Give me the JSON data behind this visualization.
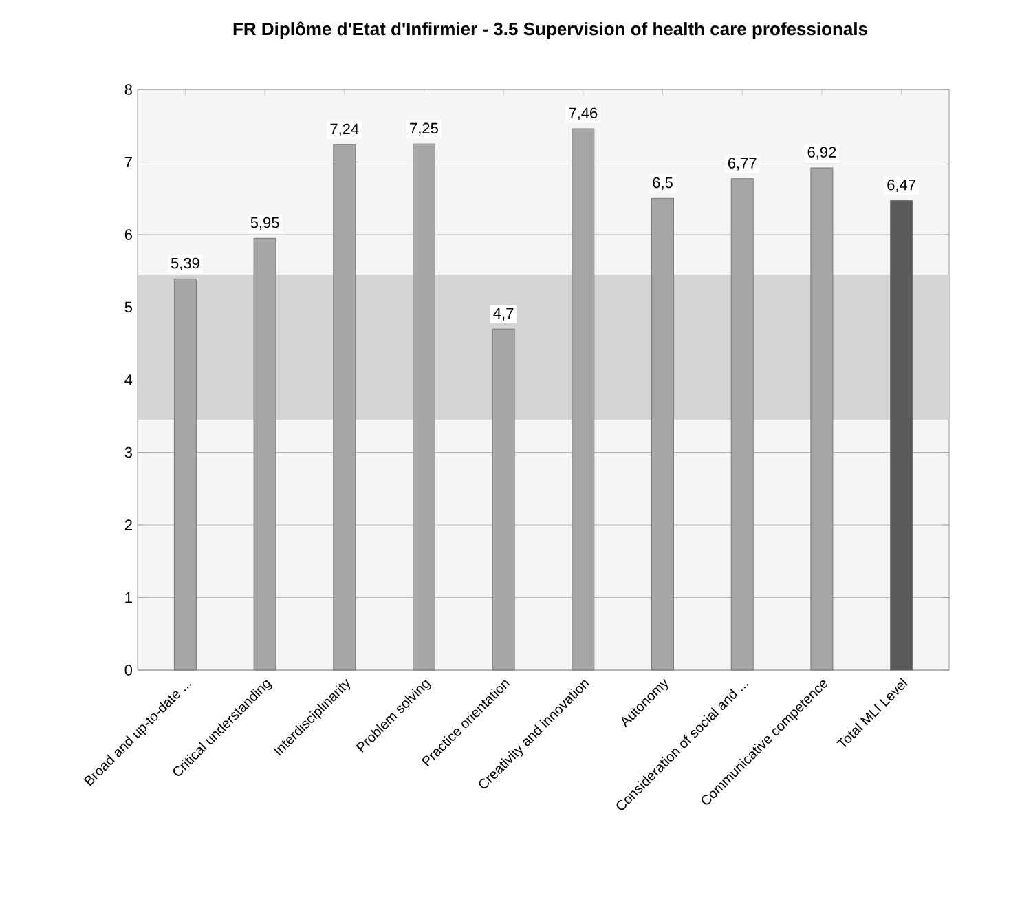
{
  "chart_data": {
    "type": "bar",
    "title": "FR Diplôme d'Etat d'Infirmier - 3.5 Supervision of health care professionals",
    "categories": [
      "Broad and up-to-date ...",
      "Critical understanding",
      "Interdisciplinarity",
      "Problem solving",
      "Practice orientation",
      "Creativity and innovation",
      "Autonomy",
      "Consideration of social and ...",
      "Communicative competence",
      "Total MLI Level"
    ],
    "values": [
      5.39,
      5.95,
      7.24,
      7.25,
      4.7,
      7.46,
      6.5,
      6.77,
      6.92,
      6.47
    ],
    "value_labels": [
      "5,39",
      "5,95",
      "7,24",
      "7,25",
      "4,7",
      "7,46",
      "6,5",
      "6,77",
      "6,92",
      "6,47"
    ],
    "colors": [
      "#a6a6a6",
      "#a6a6a6",
      "#a6a6a6",
      "#a6a6a6",
      "#a6a6a6",
      "#a6a6a6",
      "#a6a6a6",
      "#a6a6a6",
      "#a6a6a6",
      "#595959"
    ],
    "ylim": [
      0,
      8
    ],
    "yticks": [
      0,
      1,
      2,
      3,
      4,
      5,
      6,
      7,
      8
    ],
    "grid": "y",
    "bands": [
      {
        "axis": "y",
        "from": 3.45,
        "to": 5.45,
        "color": "#d4d4d4"
      }
    ]
  }
}
